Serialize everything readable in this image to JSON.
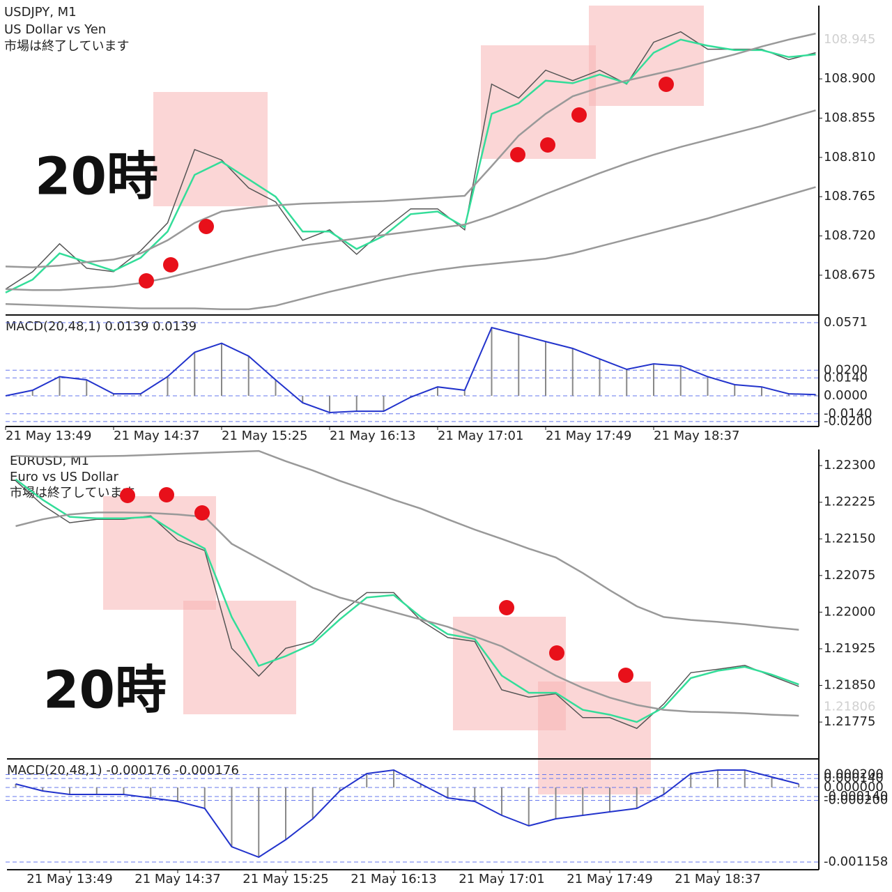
{
  "chart_data": [
    {
      "type": "line",
      "title": "USDJPY, M1",
      "subtitle": "US Dollar vs Yen",
      "status": "市場は終了しています",
      "annotation": "20時",
      "categories": [
        "21 May 13:49",
        null,
        null,
        null,
        "21 May 14:37",
        null,
        null,
        null,
        "21 May 15:25",
        null,
        null,
        null,
        "21 May 16:13",
        null,
        null,
        null,
        "21 May 17:01",
        null,
        null,
        null,
        "21 May 17:49",
        null,
        null,
        null,
        "21 May 18:37",
        null,
        null,
        null,
        null,
        null,
        null
      ],
      "series": [
        {
          "color": "#555555",
          "values": [
            108.659,
            108.679,
            108.711,
            108.683,
            108.679,
            108.703,
            108.735,
            108.819,
            108.807,
            108.775,
            108.759,
            108.715,
            108.727,
            108.699,
            108.727,
            108.751,
            108.751,
            108.727,
            108.894,
            108.878,
            108.91,
            108.898,
            108.91,
            108.894,
            108.942,
            108.954,
            108.934,
            108.934,
            108.934,
            108.922,
            108.93
          ]
        },
        {
          "color": "#33dd99",
          "values": [
            108.655,
            108.67,
            108.7,
            108.69,
            108.68,
            108.695,
            108.725,
            108.79,
            108.805,
            108.785,
            108.765,
            108.725,
            108.725,
            108.705,
            108.72,
            108.745,
            108.748,
            108.73,
            108.86,
            108.872,
            108.898,
            108.895,
            108.905,
            108.895,
            108.93,
            108.945,
            108.938,
            108.933,
            108.933,
            108.925,
            108.928
          ]
        },
        {
          "color": "#999999",
          "values": [
            108.685,
            108.684,
            108.686,
            108.69,
            108.693,
            108.7,
            108.715,
            108.735,
            108.748,
            108.752,
            108.755,
            108.757,
            108.758,
            108.759,
            108.76,
            108.762,
            108.764,
            108.766,
            108.8,
            108.835,
            108.86,
            108.88,
            108.89,
            108.898,
            108.905,
            108.912,
            108.92,
            108.928,
            108.937,
            108.945,
            108.952
          ]
        },
        {
          "color": "#999999",
          "values": [
            108.659,
            108.658,
            108.658,
            108.66,
            108.662,
            108.666,
            108.672,
            108.68,
            108.688,
            108.696,
            108.703,
            108.709,
            108.713,
            108.717,
            108.721,
            108.725,
            108.729,
            108.733,
            108.743,
            108.755,
            108.768,
            108.78,
            108.792,
            108.803,
            108.813,
            108.822,
            108.83,
            108.838,
            108.846,
            108.855,
            108.864
          ]
        },
        {
          "color": "#999999",
          "values": [
            108.642,
            108.641,
            108.64,
            108.639,
            108.638,
            108.637,
            108.637,
            108.637,
            108.636,
            108.636,
            108.64,
            108.648,
            108.656,
            108.663,
            108.67,
            108.676,
            108.681,
            108.685,
            108.688,
            108.691,
            108.694,
            108.7,
            108.708,
            108.716,
            108.724,
            108.732,
            108.74,
            108.749,
            108.758,
            108.767,
            108.776
          ]
        }
      ],
      "ylim": [
        108.631,
        108.984
      ],
      "yticks": [
        108.675,
        {
          "value": 108.72,
          "label": "108.720"
        },
        108.765,
        {
          "value": 108.81,
          "label": "108.810"
        },
        108.855,
        {
          "value": 108.9,
          "label": "108.900"
        }
      ],
      "last_price": 108.945,
      "macd": {
        "type": "bar",
        "label": "MACD(20,48,1) 0.0139 0.0139",
        "color": "#2233cc",
        "bar_color": "#888888",
        "values": [
          0,
          0.0044,
          0.015,
          0.0125,
          0.0016,
          0.0016,
          0.015,
          0.034,
          0.041,
          0.031,
          0.0125,
          -0.0054,
          -0.013,
          -0.012,
          -0.012,
          -0.001,
          0.007,
          0.0044,
          0.0533,
          0.0479,
          0.0424,
          0.037,
          0.0288,
          0.0207,
          0.025,
          0.0234,
          0.015,
          0.0087,
          0.007,
          0.0016,
          0.001
        ],
        "ylim": [
          -0.0239,
          0.0631
        ],
        "yticks": [
          0.0571,
          {
            "value": 0.02,
            "label": "0.0200"
          },
          {
            "value": 0.014,
            "label": "0.0140"
          },
          {
            "value": 0,
            "label": "0.0000"
          },
          {
            "value": -0.014,
            "label": "-0.0140"
          },
          {
            "value": -0.02,
            "label": "-0.0200"
          }
        ]
      }
    },
    {
      "type": "line",
      "title": "EURUSD, M1",
      "subtitle": "Euro vs US Dollar",
      "status": "市場は終了しています",
      "annotation": "20時",
      "categories": [
        null,
        null,
        "21 May 13:49",
        null,
        null,
        null,
        "21 May 14:37",
        null,
        null,
        null,
        "21 May 15:25",
        null,
        null,
        null,
        "21 May 16:13",
        null,
        null,
        null,
        "21 May 17:01",
        null,
        null,
        null,
        "21 May 17:49",
        null,
        null,
        null,
        "21 May 18:37",
        null,
        null,
        null
      ],
      "series": [
        {
          "color": "#555555",
          "values": [
            1.22269,
            1.22219,
            1.22183,
            1.2219,
            1.2219,
            1.22197,
            1.22147,
            1.22126,
            1.21926,
            1.21869,
            1.21926,
            1.2194,
            1.21998,
            1.2204,
            1.2204,
            1.21983,
            1.21948,
            1.2194,
            1.21841,
            1.21826,
            1.21833,
            1.21784,
            1.21784,
            1.21762,
            1.21812,
            1.21876,
            1.21883,
            1.21891,
            1.21869,
            1.21848
          ]
        },
        {
          "color": "#33dd99",
          "values": [
            1.22272,
            1.2223,
            1.22195,
            1.22192,
            1.22192,
            1.22195,
            1.2216,
            1.2213,
            1.2199,
            1.2189,
            1.2191,
            1.21935,
            1.21985,
            1.2203,
            1.22035,
            1.2199,
            1.21955,
            1.21945,
            1.2187,
            1.21835,
            1.21835,
            1.218,
            1.2179,
            1.21775,
            1.21805,
            1.21865,
            1.2188,
            1.21888,
            1.21872,
            1.21852
          ]
        },
        {
          "color": "#999999",
          "values": [
            1.2232,
            1.22318,
            1.22318,
            1.22319,
            1.2232,
            1.22322,
            1.22324,
            1.22326,
            1.22328,
            1.2233,
            1.22309,
            1.2229,
            1.22269,
            1.2225,
            1.2223,
            1.22212,
            1.2219,
            1.22169,
            1.2215,
            1.2213,
            1.22112,
            1.2208,
            1.22045,
            1.22012,
            1.2199,
            1.21984,
            1.2198,
            1.21975,
            1.21969,
            1.21964
          ]
        },
        {
          "color": "#999999",
          "values": [
            1.22176,
            1.2219,
            1.222,
            1.22204,
            1.22204,
            1.22203,
            1.222,
            1.22195,
            1.2214,
            1.2211,
            1.2208,
            1.2205,
            1.2203,
            1.22015,
            1.22,
            1.21985,
            1.2197,
            1.2195,
            1.2193,
            1.219,
            1.2187,
            1.21845,
            1.21825,
            1.2181,
            1.218,
            1.21796,
            1.21795,
            1.21793,
            1.2179,
            1.21788
          ]
        }
      ],
      "ylim": [
        1.21701,
        1.22333
      ],
      "yticks": [
        1.21775,
        {
          "value": 1.2185,
          "label": "1.21850"
        },
        1.21925,
        {
          "value": 1.22,
          "label": "1.22000"
        },
        1.22075,
        {
          "value": 1.2215,
          "label": "1.22150"
        },
        1.22225,
        {
          "value": 1.223,
          "label": "1.22300"
        }
      ],
      "last_price": 1.21806,
      "macd": {
        "type": "bar",
        "label": "MACD(20,48,1) -0.000176 -0.000176",
        "color": "#2233cc",
        "bar_color": "#888888",
        "values": [
          5.4e-05,
          -5.4e-05,
          -0.000108,
          -0.000108,
          -0.000108,
          -0.000162,
          -0.000216,
          -0.000325,
          -0.00092,
          -0.001082,
          -0.000812,
          -0.000487,
          -5.4e-05,
          0.000216,
          0.000271,
          5.4e-05,
          -0.000162,
          -0.000216,
          -0.000433,
          -0.000595,
          -0.000487,
          -0.000433,
          -0.000379,
          -0.000325,
          -0.000108,
          0.000216,
          0.000271,
          0.000271,
          0.000162,
          5.4e-05
        ],
        "ylim": [
          -0.001277,
          0.000433
        ],
        "yticks": [
          {
            "value": 0.0002,
            "label": "0.000200"
          },
          {
            "value": 0.00014,
            "label": "0.000140"
          },
          {
            "value": 0,
            "label": "0.000000"
          },
          {
            "value": -0.00014,
            "label": "-0.000140"
          },
          {
            "value": -0.0002,
            "label": "-0.000200"
          },
          -0.001158
        ]
      }
    }
  ]
}
